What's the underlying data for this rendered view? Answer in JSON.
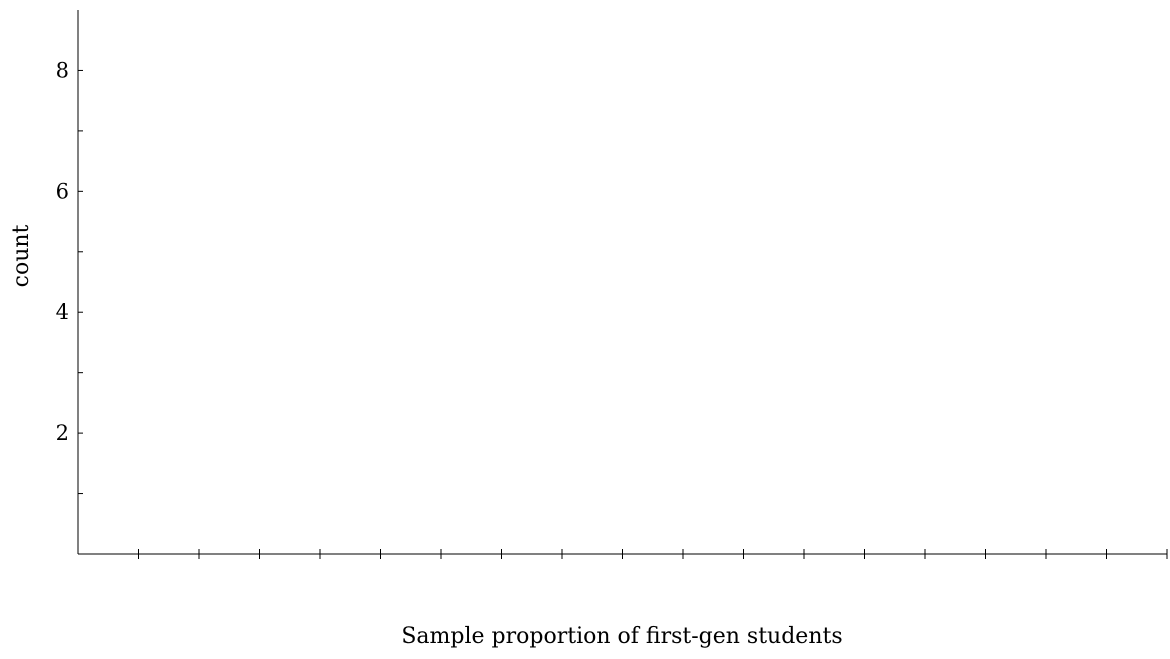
{
  "chart_data": {
    "type": "bar",
    "title": "",
    "xlabel": "Sample proportion of first-gen students",
    "ylabel": "count",
    "categories": [],
    "values": [],
    "x_tick_count": 18,
    "x_tick_labels": [],
    "ylim": [
      0,
      9
    ],
    "y_ticks": [
      1,
      2,
      3,
      4,
      5,
      6,
      7,
      8
    ],
    "y_tick_labels": [
      "2",
      "4",
      "6",
      "8"
    ],
    "y_labeled_ticks": [
      2,
      4,
      6,
      8
    ],
    "grid": false,
    "legend": "none"
  },
  "colors": {
    "axis": "#000000",
    "background": "#ffffff"
  }
}
